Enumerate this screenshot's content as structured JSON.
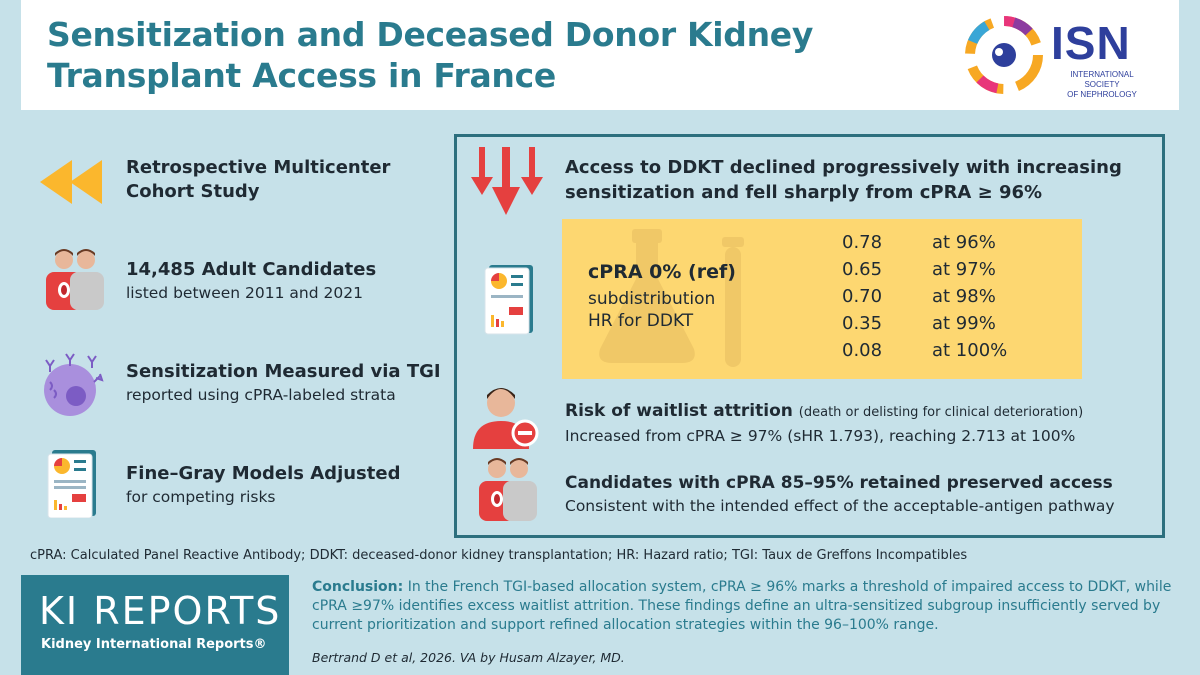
{
  "header": {
    "title_line1": "Sensitization and Deceased Donor Kidney",
    "title_line2": "Transplant Access in France",
    "logo_name": "ISN",
    "logo_sub_line1": "INTERNATIONAL SOCIETY",
    "logo_sub_line2": "OF NEPHROLOGY"
  },
  "left": {
    "items": [
      {
        "icon": "rewind-arrows-icon",
        "title_line1": "Retrospective Multicenter",
        "title_line2": "Cohort Study",
        "desc": ""
      },
      {
        "icon": "people-kidney-icon",
        "title_line1": "14,485 Adult Candidates",
        "title_line2": "",
        "desc": "listed between 2011 and 2021"
      },
      {
        "icon": "cell-antibody-icon",
        "title_line1": "Sensitization Measured via TGI",
        "title_line2": "",
        "desc": "reported using cPRA-labeled strata"
      },
      {
        "icon": "report-chart-icon",
        "title_line1": "Fine–Gray Models Adjusted",
        "title_line2": "",
        "desc": "for competing risks"
      }
    ]
  },
  "right": {
    "headline_line1": "Access to DDKT declined progressively with increasing",
    "headline_line2": "sensitization and fell sharply from cPRA ≥ 96%",
    "ref_label": "cPRA 0% (ref)",
    "ref_desc_line1": "subdistribution",
    "ref_desc_line2": "HR for DDKT",
    "hr_rows": [
      {
        "value": "0.78",
        "at": "at 96%"
      },
      {
        "value": "0.65",
        "at": "at 97%"
      },
      {
        "value": "0.70",
        "at": "at 98%"
      },
      {
        "value": "0.35",
        "at": "at 99%"
      },
      {
        "value": "0.08",
        "at": "at 100%"
      }
    ],
    "attrition_title": "Risk of waitlist attrition",
    "attrition_note": "(death or delisting for clinical deterioration)",
    "attrition_desc": "Increased from cPRA ≥ 97% (sHR 1.793), reaching 2.713 at 100%",
    "preserved_title": "Candidates with cPRA 85–95% retained preserved access",
    "preserved_desc": "Consistent with the intended effect of the acceptable-antigen pathway"
  },
  "abbreviations": "cPRA: Calculated Panel Reactive Antibody; DDKT: deceased-donor kidney transplantation; HR: Hazard ratio; TGI: Taux de Greffons Incompatibles",
  "footer": {
    "brand": "KI REPORTS",
    "brand_sub": "Kidney International Reports®",
    "conclusion_label": "Conclusion:",
    "conclusion_text": " In the French TGI-based allocation system, cPRA ≥ 96% marks a threshold of impaired access to DDKT, while cPRA ≥97% identifies excess waitlist attrition. These findings define an ultra-sensitized subgroup insufficiently served by current prioritization and support refined allocation strategies within the 96–100% range.",
    "citation": "Bertrand D et al, 2026. VA by Husam Alzayer, MD."
  },
  "colors": {
    "background": "#c6e1e9",
    "title": "#2a7b8e",
    "highlight": "#fdd771",
    "accent_red": "#e5403f",
    "arrow_yellow": "#fbb72d"
  }
}
